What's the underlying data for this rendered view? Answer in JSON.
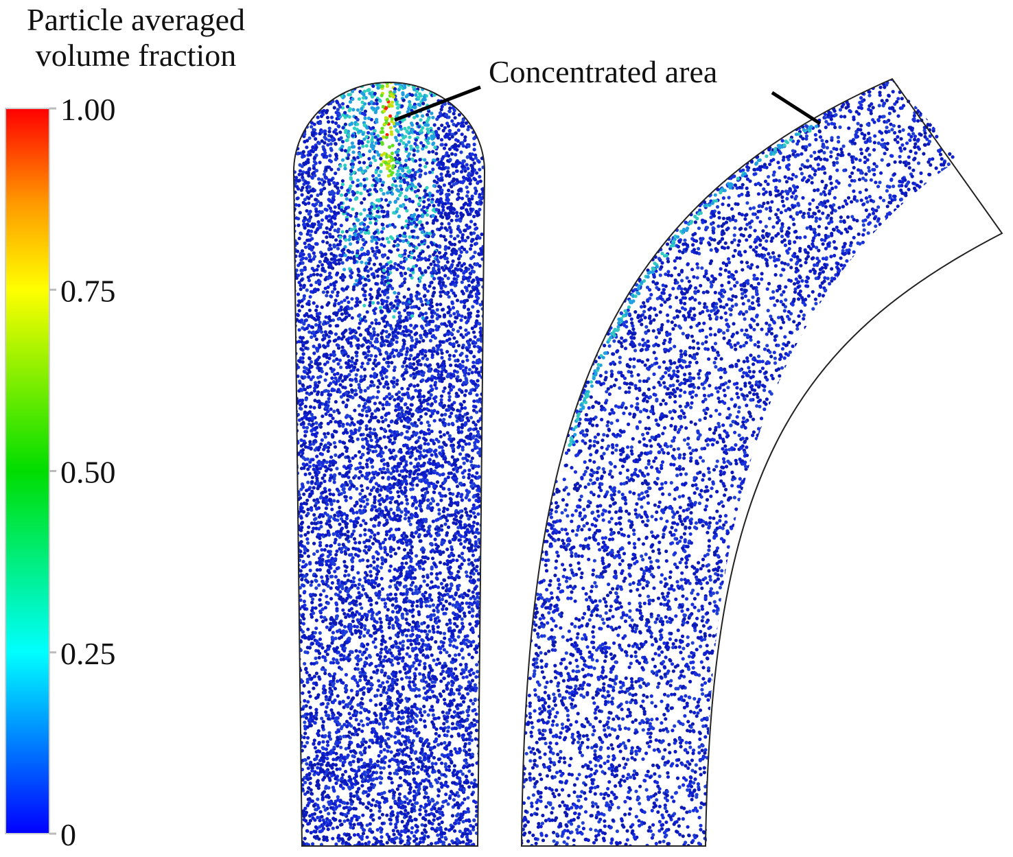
{
  "colorbar": {
    "title": [
      "Particle averaged",
      "volume fraction"
    ],
    "lim": [
      0,
      1
    ],
    "ticks": [
      {
        "value": 1,
        "label": "1.00"
      },
      0.75,
      {
        "value": 0.5,
        "label": "0.50"
      },
      0.25,
      0
    ]
  },
  "annotation": "Concentrated area"
}
